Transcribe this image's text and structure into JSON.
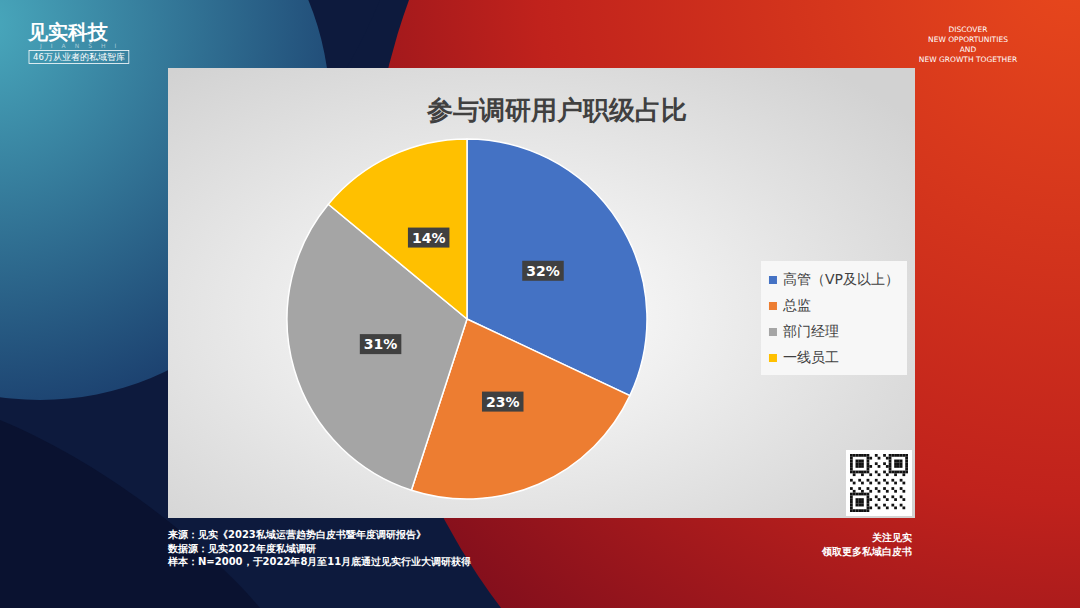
{
  "header": {
    "brand": "见实科技",
    "brand_en": "JIANSHI",
    "slogan": "46万从业者的私域智库",
    "tagline": [
      "DISCOVER",
      "NEW OPPORTUNITIES",
      "AND",
      "NEW GROWTH TOGETHER"
    ]
  },
  "chart_data": {
    "type": "pie",
    "title": "参与调研用户职级占比",
    "categories": [
      "高管（VP及以上）",
      "总监",
      "部门经理",
      "一线员工"
    ],
    "values": [
      32,
      23,
      31,
      14
    ],
    "value_labels": [
      "32%",
      "23%",
      "31%",
      "14%"
    ],
    "colors": [
      "#4472c4",
      "#ed7d31",
      "#a5a5a5",
      "#ffc000"
    ],
    "data_labels": true,
    "legend": "right"
  },
  "footer": {
    "source": "来源：见实《2023私域运营趋势白皮书暨年度调研报告》",
    "data_source": "数据源：见实2022年度私域调研",
    "sample": "样本：N=2000，于2022年8月至11月底通过见实行业大调研获得",
    "follow": [
      "关注见实",
      "领取更多私域白皮书"
    ]
  }
}
